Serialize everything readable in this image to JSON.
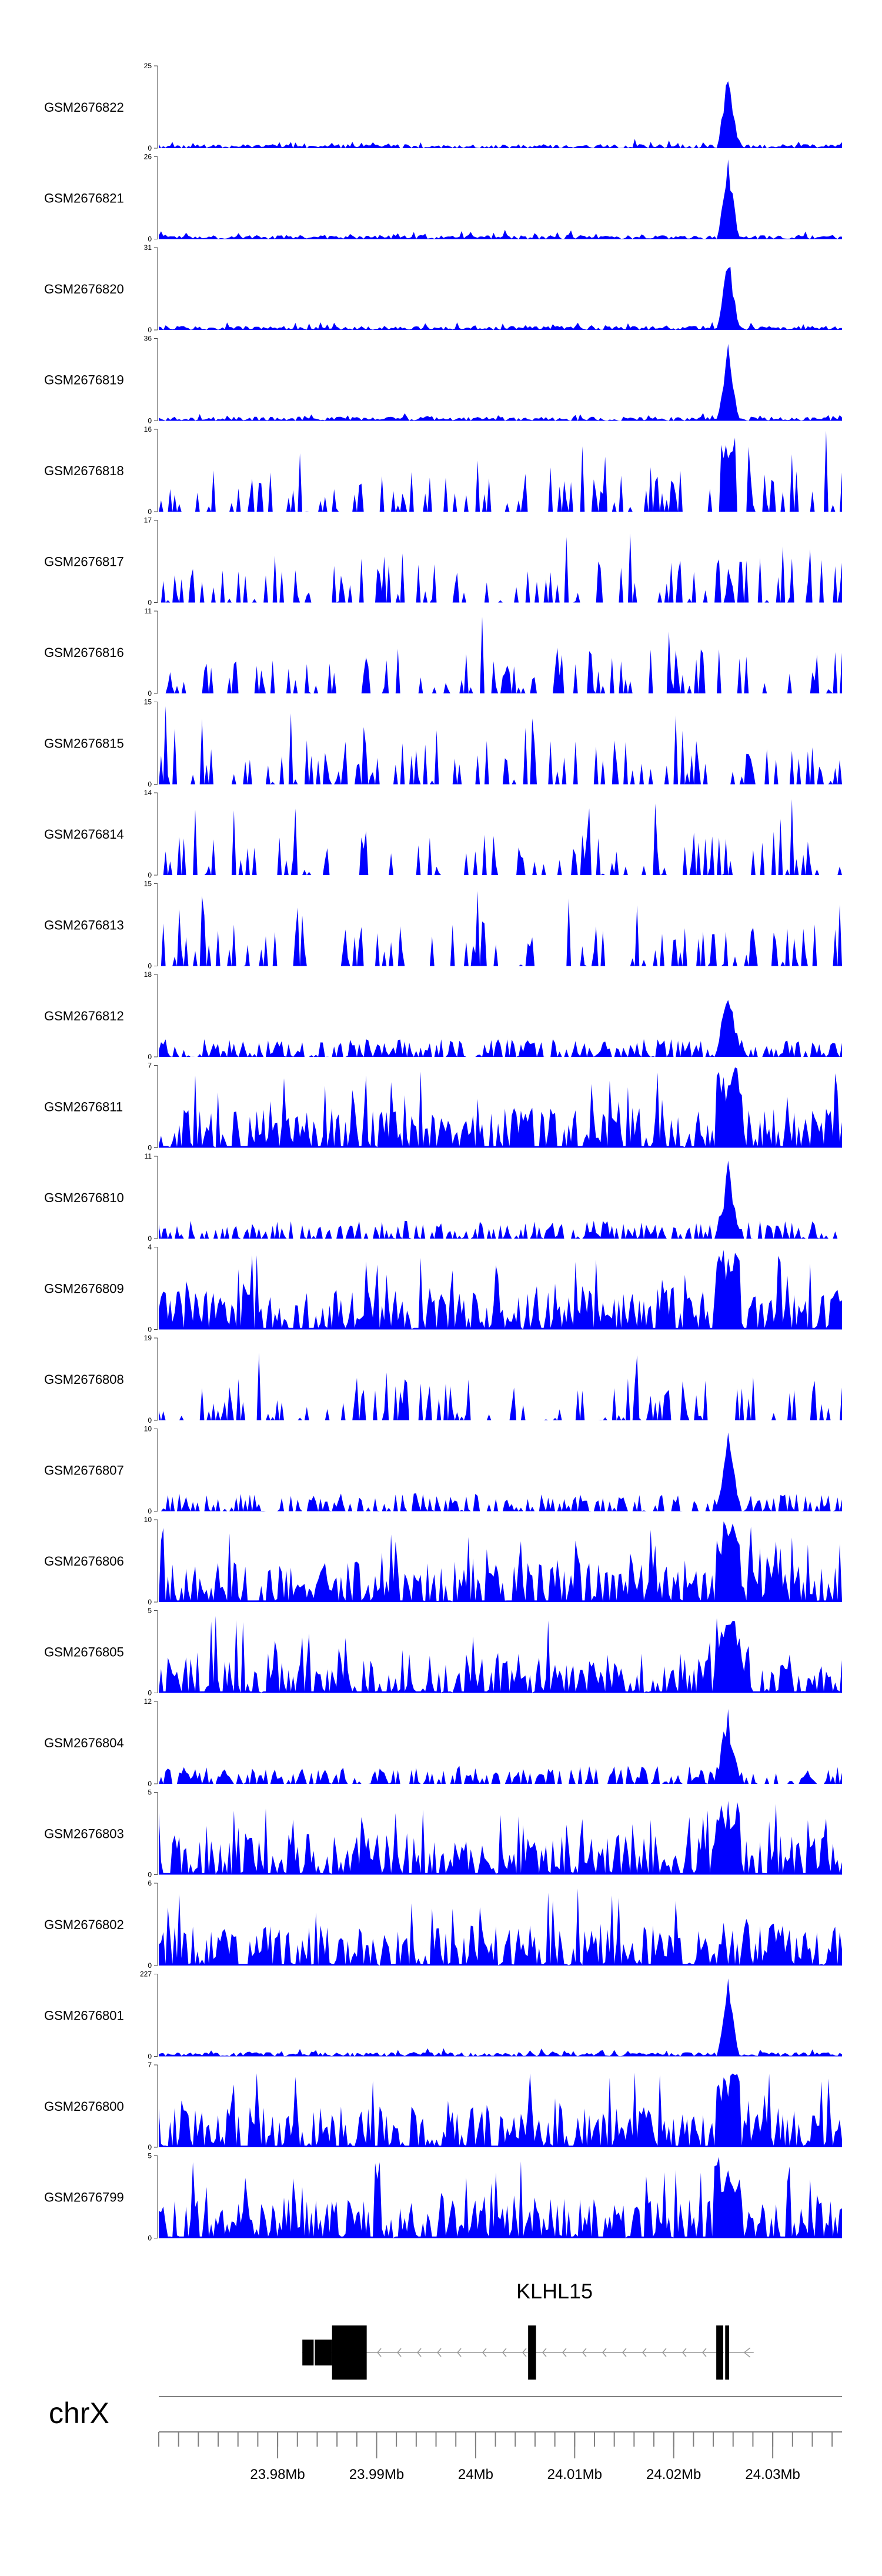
{
  "chart_data": {
    "type": "area",
    "chromosome": "chrX",
    "x_unit": "Mb",
    "xlim": [
      23.968,
      24.037
    ],
    "x_axis_ticks": [
      {
        "value": 23.98,
        "label": "23.98Mb"
      },
      {
        "value": 23.99,
        "label": "23.99Mb"
      },
      {
        "value": 24.0,
        "label": "24Mb"
      },
      {
        "value": 24.01,
        "label": "24.01Mb"
      },
      {
        "value": 24.02,
        "label": "24.02Mb"
      },
      {
        "value": 24.03,
        "label": "24.03Mb"
      }
    ],
    "gene": {
      "name": "KLHL15",
      "strand": "-",
      "start": 23.9825,
      "end": 24.0263,
      "exons": [
        {
          "start": 23.9825,
          "end": 23.9855,
          "kind": "utr"
        },
        {
          "start": 23.9855,
          "end": 23.989,
          "kind": "cds"
        },
        {
          "start": 24.0053,
          "end": 24.0061,
          "kind": "cds"
        },
        {
          "start": 24.0243,
          "end": 24.025,
          "kind": "cds"
        },
        {
          "start": 24.0252,
          "end": 24.0256,
          "kind": "cds"
        }
      ]
    },
    "series": [
      {
        "name": "GSM2676822",
        "ymax": 25,
        "profile": "sharp_peak",
        "seed": 822
      },
      {
        "name": "GSM2676821",
        "ymax": 26,
        "profile": "sharp_peak",
        "seed": 821
      },
      {
        "name": "GSM2676820",
        "ymax": 31,
        "profile": "sharp_peak",
        "seed": 820
      },
      {
        "name": "GSM2676819",
        "ymax": 36,
        "profile": "sharp_peak",
        "seed": 819
      },
      {
        "name": "GSM2676818",
        "ymax": 16,
        "profile": "sparse_peak",
        "seed": 818
      },
      {
        "name": "GSM2676817",
        "ymax": 17,
        "profile": "sparse",
        "seed": 817
      },
      {
        "name": "GSM2676816",
        "ymax": 11,
        "profile": "sparse",
        "seed": 816
      },
      {
        "name": "GSM2676815",
        "ymax": 15,
        "profile": "sparse",
        "seed": 815
      },
      {
        "name": "GSM2676814",
        "ymax": 14,
        "profile": "sparse",
        "seed": 814
      },
      {
        "name": "GSM2676813",
        "ymax": 15,
        "profile": "sparse",
        "seed": 813
      },
      {
        "name": "GSM2676812",
        "ymax": 18,
        "profile": "medium_peak",
        "seed": 812
      },
      {
        "name": "GSM2676811",
        "ymax": 7,
        "profile": "dense_peak",
        "seed": 811
      },
      {
        "name": "GSM2676810",
        "ymax": 11,
        "profile": "medium_peak",
        "seed": 810
      },
      {
        "name": "GSM2676809",
        "ymax": 4,
        "profile": "dense_peak",
        "seed": 809
      },
      {
        "name": "GSM2676808",
        "ymax": 19,
        "profile": "sparse",
        "seed": 808
      },
      {
        "name": "GSM2676807",
        "ymax": 10,
        "profile": "medium_peak",
        "seed": 807
      },
      {
        "name": "GSM2676806",
        "ymax": 10,
        "profile": "dense_peak",
        "seed": 806
      },
      {
        "name": "GSM2676805",
        "ymax": 5,
        "profile": "dense_peak",
        "seed": 805
      },
      {
        "name": "GSM2676804",
        "ymax": 12,
        "profile": "medium_peak",
        "seed": 804
      },
      {
        "name": "GSM2676803",
        "ymax": 5,
        "profile": "dense_peak",
        "seed": 803
      },
      {
        "name": "GSM2676802",
        "ymax": 6,
        "profile": "dense",
        "seed": 802
      },
      {
        "name": "GSM2676801",
        "ymax": 227,
        "profile": "sharp_peak",
        "seed": 801
      },
      {
        "name": "GSM2676800",
        "ymax": 7,
        "profile": "dense_peak",
        "seed": 800
      },
      {
        "name": "GSM2676799",
        "ymax": 5,
        "profile": "dense_peak",
        "seed": 799
      }
    ],
    "y_min_label": "0",
    "peak_position": 24.0255,
    "fill_color": "#0000ff",
    "gene_color": "#000000",
    "axis_color": "#808080"
  }
}
